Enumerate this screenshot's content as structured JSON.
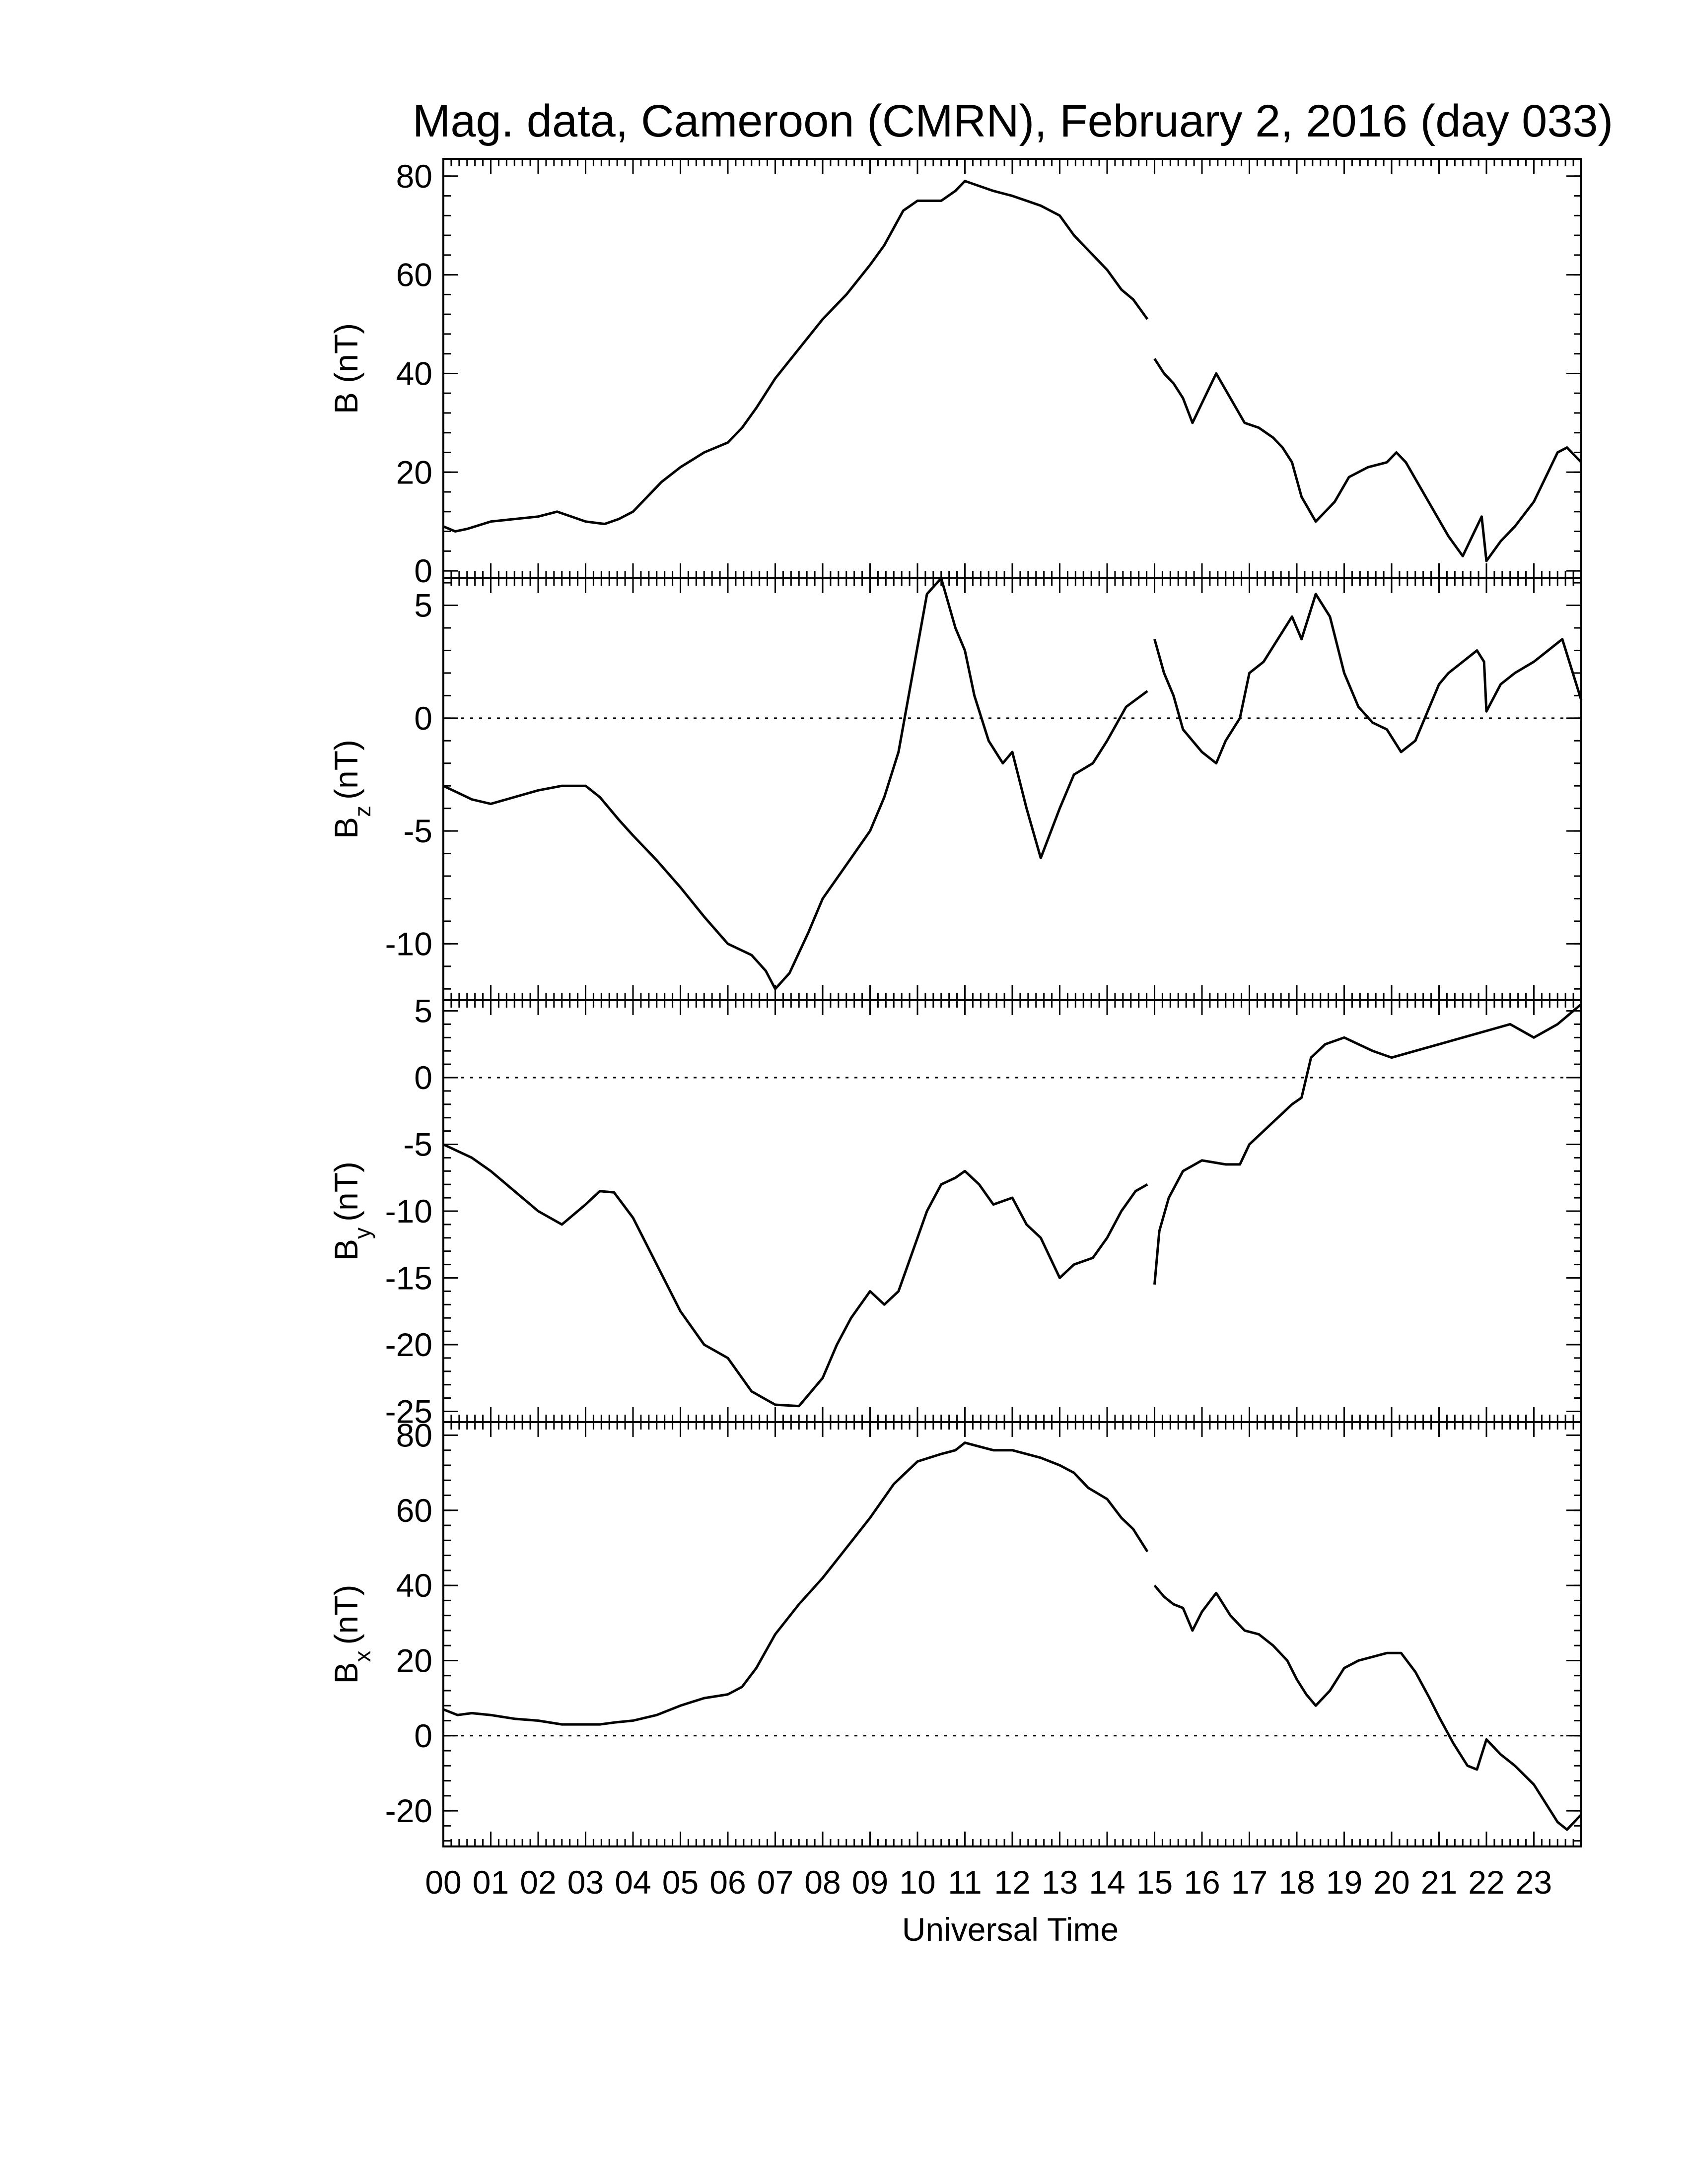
{
  "chart_data": {
    "type": "line",
    "title": "Mag. data, Cameroon (CMRN), February 2, 2016 (day 033)",
    "xlabel": "Universal Time",
    "x_tick_labels": [
      "00",
      "01",
      "02",
      "03",
      "04",
      "05",
      "06",
      "07",
      "08",
      "09",
      "10",
      "11",
      "12",
      "13",
      "14",
      "15",
      "16",
      "17",
      "18",
      "19",
      "20",
      "21",
      "22",
      "23"
    ],
    "xlim": [
      0,
      24
    ],
    "panels": [
      {
        "id": "B",
        "ylabel": "B (nT)",
        "ylim": [
          -1.5,
          83.5
        ],
        "y_ticks": [
          0,
          20,
          40,
          60,
          80
        ],
        "zero_line": false,
        "series": [
          {
            "segments": [
              {
                "x": [
                  0,
                  0.25,
                  0.5,
                  1.0,
                  1.5,
                  2.0,
                  2.4,
                  2.7,
                  3.0,
                  3.4,
                  3.7,
                  4.0,
                  4.3,
                  4.6,
                  5.0,
                  5.5,
                  6.0,
                  6.3,
                  6.6,
                  7.0,
                  7.5,
                  8.0,
                  8.5,
                  9.0,
                  9.3,
                  9.7,
                  10.0,
                  10.5,
                  10.8,
                  11.0,
                  11.3,
                  11.6,
                  12.0,
                  12.3,
                  12.6,
                  13.0,
                  13.3,
                  13.6,
                  14.0,
                  14.3,
                  14.55,
                  14.85
                ],
                "y": [
                  9,
                  8,
                  8.5,
                  10,
                  10.5,
                  11,
                  12,
                  11,
                  10,
                  9.5,
                  10.5,
                  12,
                  15,
                  18,
                  21,
                  24,
                  26,
                  29,
                  33,
                  39,
                  45,
                  51,
                  56,
                  62,
                  66,
                  73,
                  75,
                  75,
                  77,
                  79,
                  78,
                  77,
                  76,
                  75,
                  74,
                  72,
                  68,
                  65,
                  61,
                  57,
                  55,
                  51
                ]
              },
              {
                "x": [
                  15.0,
                  15.2,
                  15.4,
                  15.6,
                  15.8,
                  16.0,
                  16.3,
                  16.6,
                  16.9,
                  17.2,
                  17.5,
                  17.7,
                  17.9,
                  18.1,
                  18.4,
                  18.8,
                  19.1,
                  19.5,
                  19.9,
                  20.1,
                  20.3,
                  20.6,
                  20.9,
                  21.2,
                  21.5,
                  21.7,
                  21.9,
                  22.0,
                  22.3,
                  22.6,
                  23.0,
                  23.3,
                  23.5,
                  23.7,
                  24.0
                ],
                "y": [
                  43,
                  40,
                  38,
                  35,
                  30,
                  34,
                  40,
                  35,
                  30,
                  29,
                  27,
                  25,
                  22,
                  15,
                  10,
                  14,
                  19,
                  21,
                  22,
                  24,
                  22,
                  17,
                  12,
                  7,
                  3,
                  7,
                  11,
                  2,
                  6,
                  9,
                  14,
                  20,
                  24,
                  25,
                  22
                ]
              }
            ]
          }
        ]
      },
      {
        "id": "Bz",
        "ylabel": "B",
        "ylabel_sub": "z",
        "ylabel_unit": "(nT)",
        "ylim": [
          -12.5,
          6.2
        ],
        "y_ticks": [
          -10,
          -5,
          0,
          5
        ],
        "zero_line": true,
        "series": [
          {
            "segments": [
              {
                "x": [
                  0,
                  0.3,
                  0.6,
                  1.0,
                  1.5,
                  2.0,
                  2.5,
                  3.0,
                  3.3,
                  3.7,
                  4.0,
                  4.5,
                  5.0,
                  5.5,
                  6.0,
                  6.5,
                  6.8,
                  7.0,
                  7.3,
                  7.7,
                  8.0,
                  8.5,
                  9.0,
                  9.3,
                  9.6,
                  9.9,
                  10.2,
                  10.5,
                  10.8,
                  11.0,
                  11.2,
                  11.5,
                  11.8,
                  12.0,
                  12.3,
                  12.6,
                  13.0,
                  13.3,
                  13.7,
                  14.0,
                  14.4,
                  14.85
                ],
                "y": [
                  -3,
                  -3.3,
                  -3.6,
                  -3.8,
                  -3.5,
                  -3.2,
                  -3,
                  -3,
                  -3.5,
                  -4.5,
                  -5.2,
                  -6.3,
                  -7.5,
                  -8.8,
                  -10,
                  -10.5,
                  -11.2,
                  -12,
                  -11.3,
                  -9.5,
                  -8,
                  -6.5,
                  -5,
                  -3.5,
                  -1.5,
                  2,
                  5.5,
                  6.2,
                  4,
                  3,
                  1,
                  -1,
                  -2,
                  -1.5,
                  -4,
                  -6.2,
                  -4,
                  -2.5,
                  -2,
                  -1,
                  0.5,
                  1.2
                ]
              },
              {
                "x": [
                  15.0,
                  15.2,
                  15.4,
                  15.6,
                  15.8,
                  16.0,
                  16.3,
                  16.5,
                  16.8,
                  17.0,
                  17.3,
                  17.6,
                  17.9,
                  18.1,
                  18.4,
                  18.7,
                  19.0,
                  19.3,
                  19.6,
                  19.9,
                  20.2,
                  20.5,
                  20.8,
                  21.0,
                  21.2,
                  21.5,
                  21.8,
                  21.95,
                  22.0,
                  22.3,
                  22.6,
                  23.0,
                  23.3,
                  23.6,
                  24.0
                ],
                "y": [
                  3.5,
                  2,
                  1,
                  -0.5,
                  -1,
                  -1.5,
                  -2,
                  -1,
                  0,
                  2,
                  2.5,
                  3.5,
                  4.5,
                  3.5,
                  5.5,
                  4.5,
                  2,
                  0.5,
                  -0.2,
                  -0.5,
                  -1.5,
                  -1,
                  0.5,
                  1.5,
                  2,
                  2.5,
                  3,
                  2.5,
                  0.3,
                  1.5,
                  2,
                  2.5,
                  3,
                  3.5,
                  0.8
                ]
              }
            ]
          }
        ]
      },
      {
        "id": "By",
        "ylabel": "B",
        "ylabel_sub": "y",
        "ylabel_unit": "(nT)",
        "ylim": [
          -25.8,
          5.8
        ],
        "y_ticks": [
          -25,
          -20,
          -15,
          -10,
          -5,
          0,
          5
        ],
        "zero_line": true,
        "series": [
          {
            "segments": [
              {
                "x": [
                  0,
                  0.3,
                  0.6,
                  1.0,
                  1.5,
                  2.0,
                  2.5,
                  3.0,
                  3.3,
                  3.6,
                  4.0,
                  4.5,
                  5.0,
                  5.5,
                  6.0,
                  6.5,
                  7.0,
                  7.5,
                  8.0,
                  8.3,
                  8.6,
                  9.0,
                  9.3,
                  9.6,
                  9.9,
                  10.2,
                  10.5,
                  10.8,
                  11.0,
                  11.3,
                  11.6,
                  12.0,
                  12.3,
                  12.6,
                  13.0,
                  13.3,
                  13.7,
                  14.0,
                  14.3,
                  14.6,
                  14.85
                ],
                "y": [
                  -5,
                  -5.5,
                  -6,
                  -7,
                  -8.5,
                  -10,
                  -11,
                  -9.5,
                  -8.5,
                  -8.6,
                  -10.5,
                  -14,
                  -17.5,
                  -20,
                  -21,
                  -23.5,
                  -24.5,
                  -24.6,
                  -22.5,
                  -20,
                  -18,
                  -16,
                  -17,
                  -16,
                  -13,
                  -10,
                  -8,
                  -7.5,
                  -7,
                  -8,
                  -9.5,
                  -9,
                  -11,
                  -12,
                  -15,
                  -14,
                  -13.5,
                  -12,
                  -10,
                  -8.5,
                  -8
                ]
              },
              {
                "x": [
                  15.0,
                  15.1,
                  15.3,
                  15.6,
                  16.0,
                  16.5,
                  16.8,
                  17.0,
                  17.3,
                  17.6,
                  17.9,
                  18.1,
                  18.3,
                  18.6,
                  19.0,
                  19.3,
                  19.6,
                  20.0,
                  20.5,
                  21.0,
                  21.5,
                  22.0,
                  22.5,
                  23.0,
                  23.5,
                  24.0
                ],
                "y": [
                  -15.5,
                  -11.5,
                  -9,
                  -7,
                  -6.2,
                  -6.5,
                  -6.5,
                  -5,
                  -4,
                  -3,
                  -2,
                  -1.5,
                  1.5,
                  2.5,
                  3,
                  2.5,
                  2,
                  1.5,
                  2,
                  2.5,
                  3,
                  3.5,
                  4,
                  3,
                  4,
                  5.5
                ]
              }
            ]
          }
        ]
      },
      {
        "id": "Bx",
        "ylabel": "B",
        "ylabel_sub": "x",
        "ylabel_unit": "(nT)",
        "ylim": [
          -29.5,
          83.5
        ],
        "y_ticks": [
          -20,
          0,
          20,
          40,
          60,
          80
        ],
        "zero_line": true,
        "series": [
          {
            "segments": [
              {
                "x": [
                  0,
                  0.3,
                  0.6,
                  1.0,
                  1.5,
                  2.0,
                  2.5,
                  3.0,
                  3.3,
                  3.6,
                  4.0,
                  4.5,
                  5.0,
                  5.5,
                  6.0,
                  6.3,
                  6.6,
                  7.0,
                  7.5,
                  8.0,
                  8.5,
                  9.0,
                  9.5,
                  10.0,
                  10.5,
                  10.8,
                  11.0,
                  11.3,
                  11.6,
                  12.0,
                  12.3,
                  12.6,
                  13.0,
                  13.3,
                  13.6,
                  14.0,
                  14.3,
                  14.55,
                  14.85
                ],
                "y": [
                  7,
                  5.5,
                  6,
                  5.5,
                  4.5,
                  4,
                  3,
                  3,
                  3,
                  3.5,
                  4,
                  5.5,
                  8,
                  10,
                  11,
                  13,
                  18,
                  27,
                  35,
                  42,
                  50,
                  58,
                  67,
                  73,
                  75,
                  76,
                  78,
                  77,
                  76,
                  76,
                  75,
                  74,
                  72,
                  70,
                  66,
                  63,
                  58,
                  55,
                  49
                ]
              },
              {
                "x": [
                  15.0,
                  15.2,
                  15.4,
                  15.6,
                  15.8,
                  16.0,
                  16.3,
                  16.6,
                  16.9,
                  17.2,
                  17.5,
                  17.8,
                  18.0,
                  18.2,
                  18.4,
                  18.7,
                  19.0,
                  19.3,
                  19.6,
                  19.9,
                  20.2,
                  20.5,
                  20.8,
                  21.0,
                  21.3,
                  21.6,
                  21.8,
                  22.0,
                  22.3,
                  22.6,
                  23.0,
                  23.3,
                  23.5,
                  23.7,
                  24.0
                ],
                "y": [
                  40,
                  37,
                  35,
                  34,
                  28,
                  33,
                  38,
                  32,
                  28,
                  27,
                  24,
                  20,
                  15,
                  11,
                  8,
                  12,
                  18,
                  20,
                  21,
                  22,
                  22,
                  17,
                  10,
                  5,
                  -2,
                  -8,
                  -9,
                  -1,
                  -5,
                  -8,
                  -13,
                  -19,
                  -23,
                  -25,
                  -21
                ]
              }
            ]
          }
        ]
      }
    ]
  }
}
